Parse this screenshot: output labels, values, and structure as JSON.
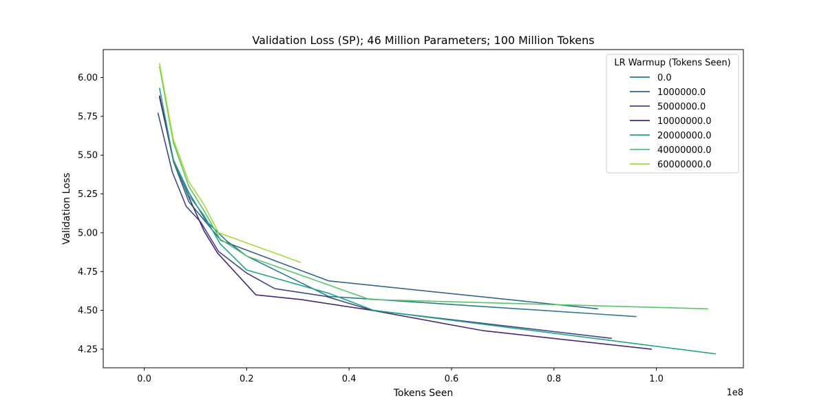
{
  "chart_data": {
    "type": "line",
    "title": "Validation Loss (SP); 46 Million Parameters; 100 Million Tokens",
    "xlabel": "Tokens Seen",
    "ylabel": "Validation Loss",
    "x_offset_label": "1e8",
    "xlim": [
      -0.08,
      1.17
    ],
    "ylim": [
      4.13,
      6.18
    ],
    "x_ticks": [
      0.0,
      0.2,
      0.4,
      0.6,
      0.8,
      1.0
    ],
    "x_tick_labels": [
      "0.0",
      "0.2",
      "0.4",
      "0.6",
      "0.8",
      "1.0"
    ],
    "y_ticks": [
      4.25,
      4.5,
      4.75,
      5.0,
      5.25,
      5.5,
      5.75,
      6.0
    ],
    "y_tick_labels": [
      "4.25",
      "4.50",
      "4.75",
      "5.00",
      "5.25",
      "5.50",
      "5.75",
      "6.00"
    ],
    "grid": false,
    "legend": {
      "title": "LR Warmup (Tokens Seen)",
      "position": "top-right"
    },
    "series": [
      {
        "name": "0.0",
        "color": "#2a788e",
        "x": [
          0.03,
          0.057,
          0.087,
          0.12,
          0.16,
          0.2,
          0.36,
          0.96
        ],
        "y": [
          5.87,
          5.47,
          5.26,
          5.08,
          4.95,
          4.85,
          4.59,
          4.46
        ]
      },
      {
        "name": "1000000.0",
        "color": "#33638d",
        "x": [
          0.03,
          0.057,
          0.087,
          0.12,
          0.15,
          0.36,
          0.885
        ],
        "y": [
          5.88,
          5.46,
          5.2,
          5.07,
          4.95,
          4.69,
          4.51
        ]
      },
      {
        "name": "5000000.0",
        "color": "#3f4788",
        "x": [
          0.027,
          0.055,
          0.082,
          0.11,
          0.145,
          0.2,
          0.255,
          0.355,
          0.445,
          0.912
        ],
        "y": [
          5.77,
          5.39,
          5.17,
          5.07,
          4.88,
          4.74,
          4.64,
          4.59,
          4.5,
          4.32
        ]
      },
      {
        "name": "10000000.0",
        "color": "#482677",
        "x": [
          0.03,
          0.057,
          0.087,
          0.117,
          0.143,
          0.218,
          0.305,
          0.445,
          0.66,
          0.99
        ],
        "y": [
          5.88,
          5.47,
          5.23,
          5.01,
          4.87,
          4.6,
          4.57,
          4.5,
          4.37,
          4.25
        ]
      },
      {
        "name": "20000000.0",
        "color": "#20a386",
        "x": [
          0.03,
          0.057,
          0.087,
          0.117,
          0.148,
          0.2,
          0.36,
          0.448,
          1.115
        ],
        "y": [
          5.93,
          5.47,
          5.24,
          5.11,
          4.93,
          4.76,
          4.61,
          4.5,
          4.22
        ]
      },
      {
        "name": "40000000.0",
        "color": "#56c667",
        "x": [
          0.03,
          0.057,
          0.087,
          0.117,
          0.148,
          0.2,
          0.44,
          1.1
        ],
        "y": [
          6.07,
          5.58,
          5.3,
          5.14,
          4.96,
          4.85,
          4.57,
          4.51
        ]
      },
      {
        "name": "60000000.0",
        "color": "#a0da39",
        "x": [
          0.03,
          0.057,
          0.087,
          0.117,
          0.145,
          0.305
        ],
        "y": [
          6.09,
          5.6,
          5.33,
          5.18,
          5.0,
          4.81
        ]
      }
    ]
  }
}
